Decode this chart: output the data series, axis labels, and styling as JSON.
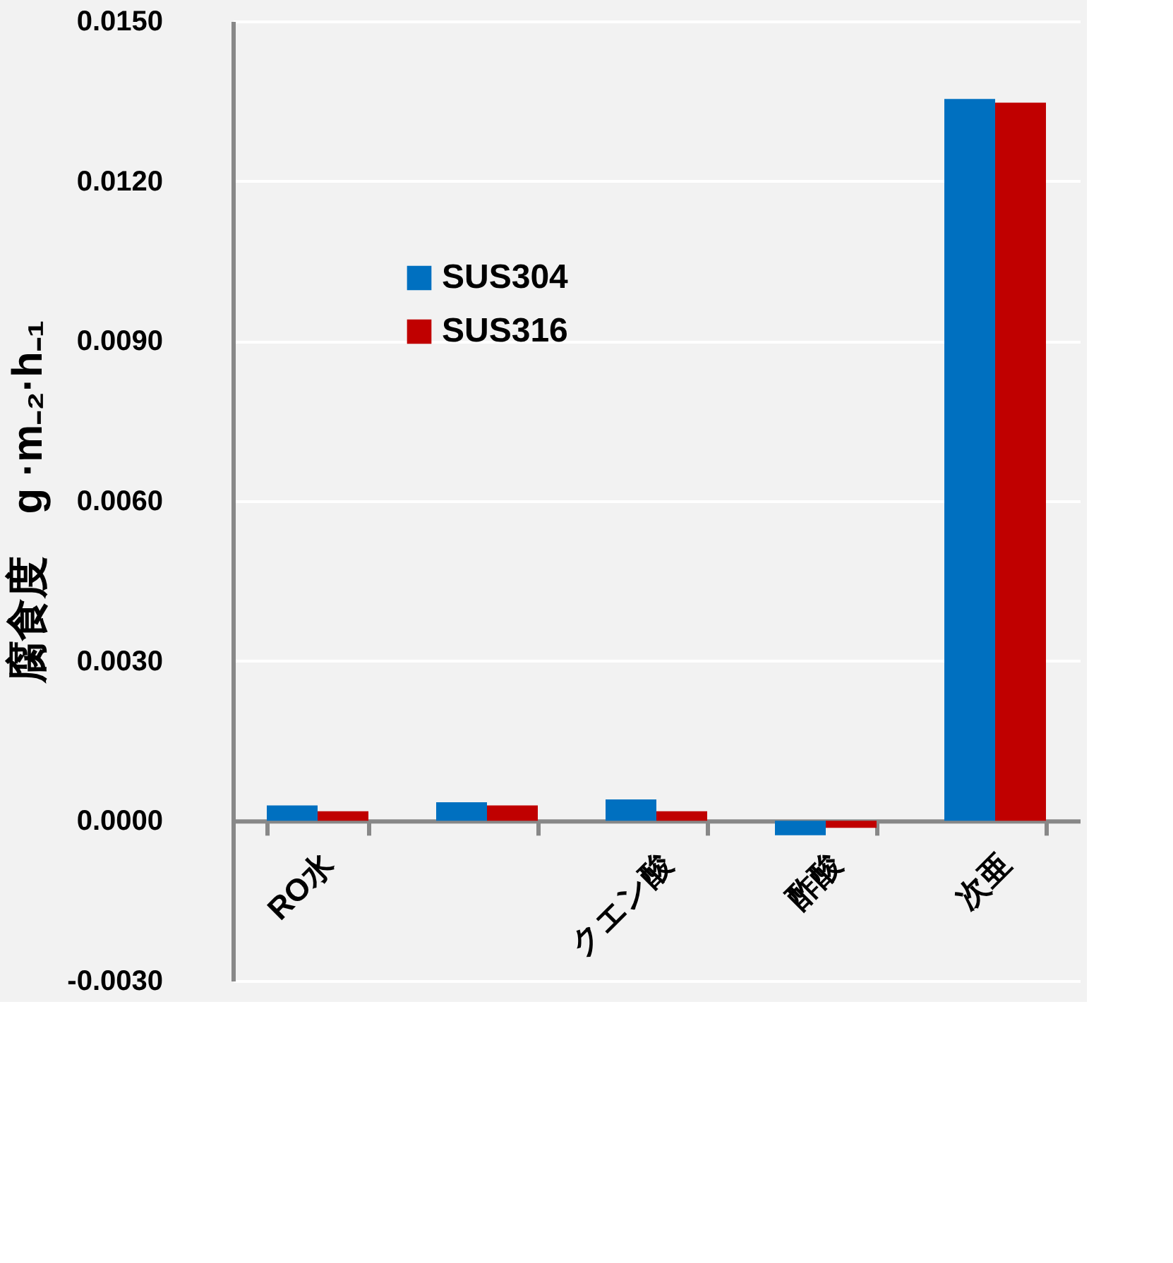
{
  "chart_data": {
    "type": "bar",
    "ylabel": "腐食度　g ·m₋₂·h₋₁",
    "categories": [
      "RO水",
      null,
      "クエン酸",
      "酢酸",
      "次亜"
    ],
    "series": [
      {
        "name": "SUS304",
        "color": "#0070c0",
        "values": [
          0.00029,
          0.00035,
          0.0004,
          -0.00027,
          0.01354
        ]
      },
      {
        "name": "SUS316",
        "color": "#c00000",
        "values": [
          0.00018,
          0.00029,
          0.00018,
          -0.00013,
          0.01347
        ]
      }
    ],
    "ylim": [
      -0.003,
      0.015
    ],
    "yticks": [
      {
        "value": -0.003,
        "label": "-0.0030"
      },
      {
        "value": 0,
        "label": "0.0000"
      },
      {
        "value": 0.003,
        "label": "0.0030"
      },
      {
        "value": 0.006,
        "label": "0.0060"
      },
      {
        "value": 0.009,
        "label": "0.0090"
      },
      {
        "value": 0.012,
        "label": "0.0120"
      },
      {
        "value": 0.015,
        "label": "0.0150"
      }
    ],
    "grid": "y",
    "legend": "top left"
  }
}
